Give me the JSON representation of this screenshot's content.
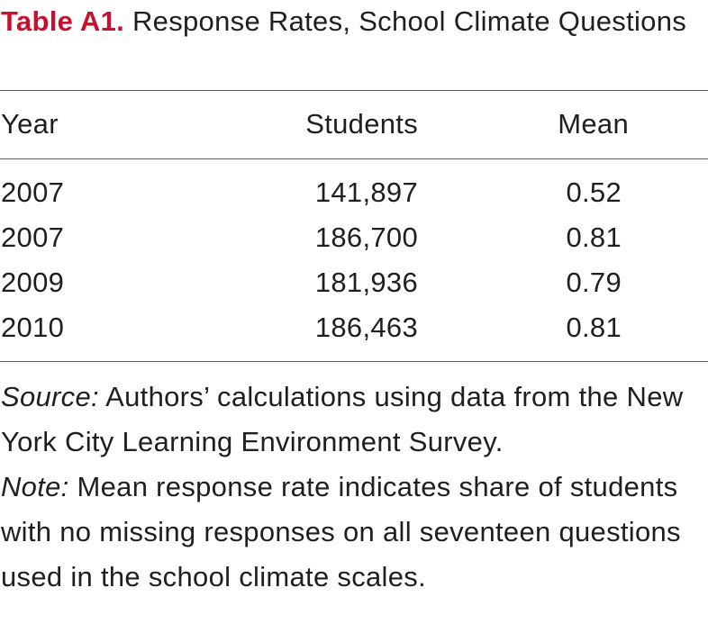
{
  "caption": {
    "label": "Table A1.",
    "text": " Response Rates, School Climate Questions"
  },
  "table": {
    "columns": [
      "Year",
      "Students",
      "Mean"
    ],
    "rows": [
      {
        "year": "2007",
        "students": "141,897",
        "mean": "0.52"
      },
      {
        "year": "2007",
        "students": "186,700",
        "mean": "0.81"
      },
      {
        "year": "2009",
        "students": "181,936",
        "mean": "0.79"
      },
      {
        "year": "2010",
        "students": "186,463",
        "mean": "0.81"
      }
    ]
  },
  "notes": {
    "source_lead": "Source:",
    "source_text": " Authors’ calculations using data from the New York City Learning Environment Survey.",
    "note_lead": "Note:",
    "note_text": " Mean response rate indicates share of students with no missing responses on all seventeen questions used in the school climate scales."
  },
  "colors": {
    "label_red": "#c8102e",
    "text": "#1f1f1f",
    "rule": "#5a5a5a"
  }
}
